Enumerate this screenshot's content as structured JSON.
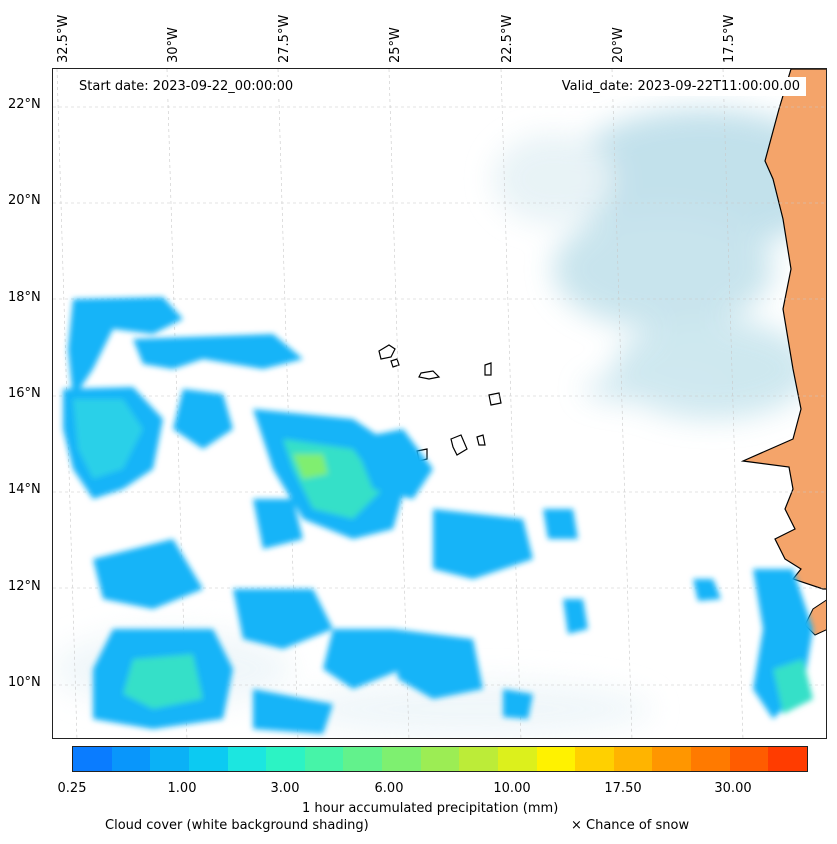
{
  "map": {
    "start_date": "Start date: 2023-09-22_00:00:00",
    "valid_date": "Valid_date: 2023-09-22T11:00:00.00",
    "longitude_labels": [
      "32.5°W",
      "30°W",
      "27.5°W",
      "25°W",
      "22.5°W",
      "20°W",
      "17.5°W"
    ],
    "latitude_labels": [
      "22°N",
      "20°N",
      "18°N",
      "16°N",
      "14°N",
      "12°N",
      "10°N"
    ],
    "land_color": "#f4a46a",
    "cloud_color": "#b8dce8",
    "coast_color": "#000000",
    "grid": true
  },
  "colorbar": {
    "label": "1 hour accumulated precipitation (mm)",
    "tick_labels": [
      "0.25",
      "1.00",
      "3.00",
      "6.00",
      "10.00",
      "17.50",
      "30.00"
    ],
    "colors": [
      "#0a7cff",
      "#0996fb",
      "#0bb1f6",
      "#0ccaf2",
      "#1ce6e0",
      "#2cf3c4",
      "#46f4a8",
      "#62f28c",
      "#7ef070",
      "#9ced54",
      "#bcec38",
      "#dcf01c",
      "#fff200",
      "#ffd000",
      "#ffb400",
      "#ff9600",
      "#ff7a00",
      "#ff5c00",
      "#ff3c00"
    ],
    "unit": "mm"
  },
  "legend": {
    "cloud_cover": "Cloud cover (white background shading)",
    "snow": "× Chance of snow"
  }
}
